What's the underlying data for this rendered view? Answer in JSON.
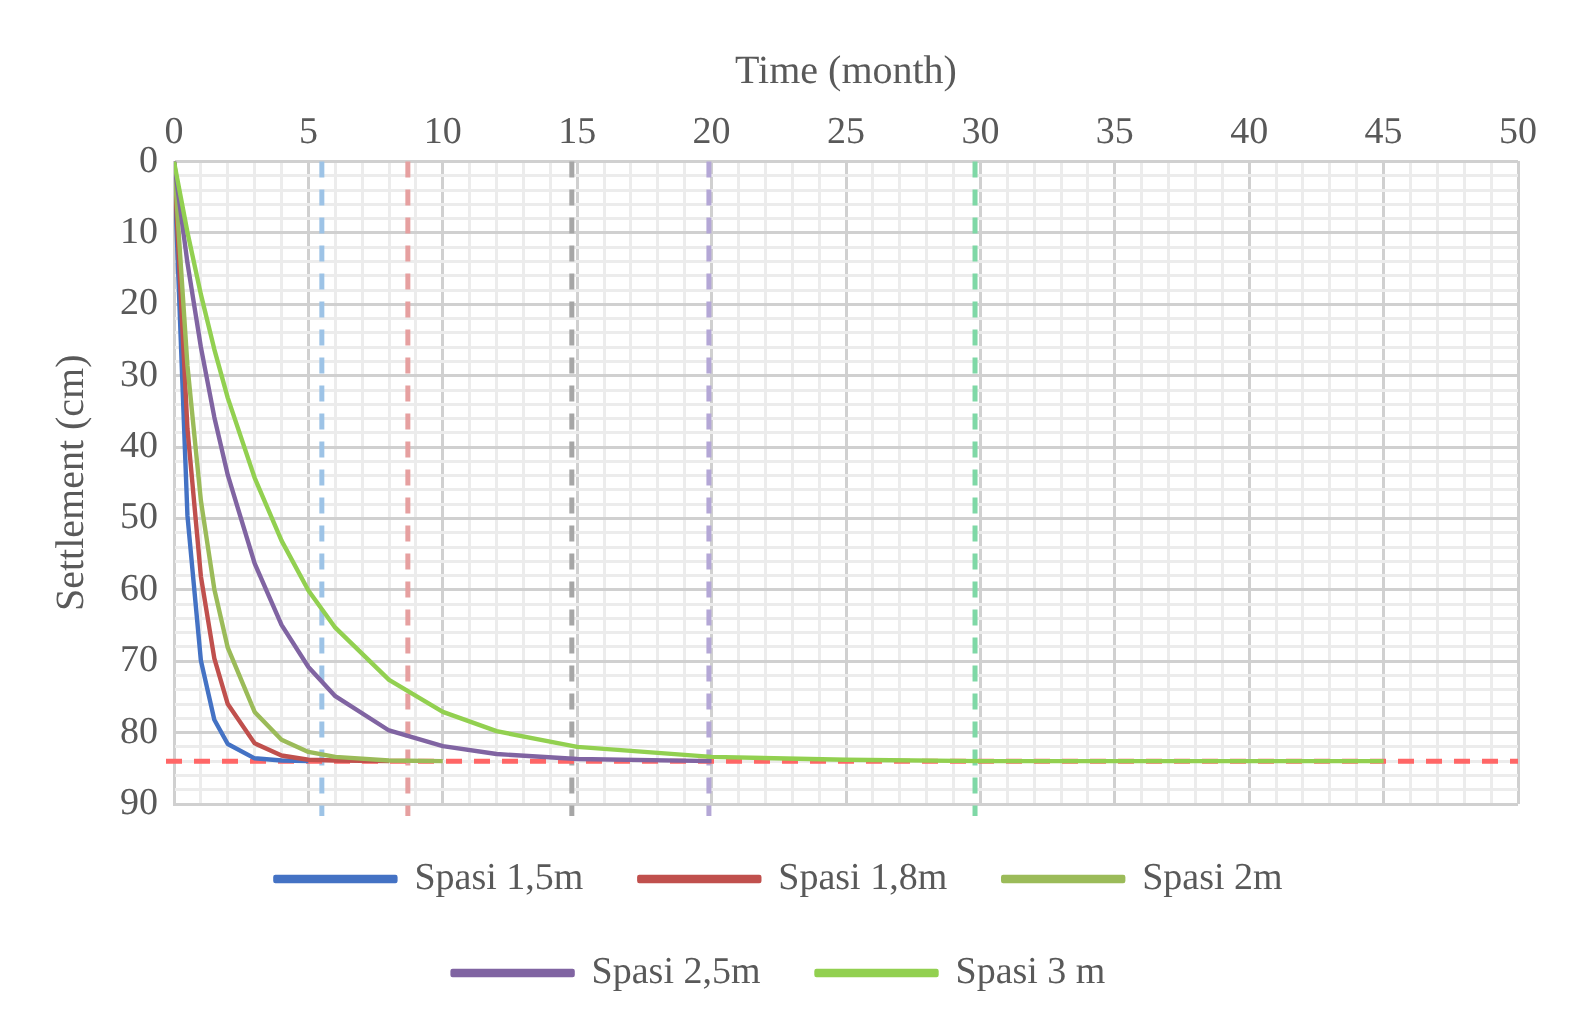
{
  "chart_data": {
    "type": "line",
    "xlabel": "Time (month)",
    "ylabel": "Settlement (cm)",
    "xlim": [
      0,
      50
    ],
    "ylim": [
      90,
      0
    ],
    "xticks": [
      0,
      {
        "value": 1,
        "label": null
      },
      {
        "value": 2,
        "label": null
      },
      {
        "value": 3,
        "label": null
      },
      {
        "value": 4,
        "label": null
      },
      5,
      {
        "value": 6,
        "label": null
      },
      {
        "value": 7,
        "label": null
      },
      {
        "value": 8,
        "label": null
      },
      {
        "value": 9,
        "label": null
      },
      10,
      {
        "value": 11,
        "label": null
      },
      {
        "value": 12,
        "label": null
      },
      {
        "value": 13,
        "label": null
      },
      {
        "value": 14,
        "label": null
      },
      15,
      {
        "value": 16,
        "label": null
      },
      {
        "value": 17,
        "label": null
      },
      {
        "value": 18,
        "label": null
      },
      {
        "value": 19,
        "label": null
      },
      20,
      {
        "value": 21,
        "label": null
      },
      {
        "value": 22,
        "label": null
      },
      {
        "value": 23,
        "label": null
      },
      {
        "value": 24,
        "label": null
      },
      25,
      {
        "value": 26,
        "label": null
      },
      {
        "value": 27,
        "label": null
      },
      {
        "value": 28,
        "label": null
      },
      {
        "value": 29,
        "label": null
      },
      30,
      {
        "value": 31,
        "label": null
      },
      {
        "value": 32,
        "label": null
      },
      {
        "value": 33,
        "label": null
      },
      {
        "value": 34,
        "label": null
      },
      35,
      {
        "value": 36,
        "label": null
      },
      {
        "value": 37,
        "label": null
      },
      {
        "value": 38,
        "label": null
      },
      {
        "value": 39,
        "label": null
      },
      40,
      {
        "value": 41,
        "label": null
      },
      {
        "value": 42,
        "label": null
      },
      {
        "value": 43,
        "label": null
      },
      {
        "value": 44,
        "label": null
      },
      45,
      {
        "value": 46,
        "label": null
      },
      {
        "value": 47,
        "label": null
      },
      {
        "value": 48,
        "label": null
      },
      {
        "value": 49,
        "label": null
      },
      50
    ],
    "yticks": [
      0,
      {
        "value": 2,
        "label": null
      },
      {
        "value": 4,
        "label": null
      },
      {
        "value": 6,
        "label": null
      },
      {
        "value": 8,
        "label": null
      },
      10,
      {
        "value": 12,
        "label": null
      },
      {
        "value": 14,
        "label": null
      },
      {
        "value": 16,
        "label": null
      },
      {
        "value": 18,
        "label": null
      },
      20,
      {
        "value": 22,
        "label": null
      },
      {
        "value": 24,
        "label": null
      },
      {
        "value": 26,
        "label": null
      },
      {
        "value": 28,
        "label": null
      },
      30,
      {
        "value": 32,
        "label": null
      },
      {
        "value": 34,
        "label": null
      },
      {
        "value": 36,
        "label": null
      },
      {
        "value": 38,
        "label": null
      },
      40,
      {
        "value": 42,
        "label": null
      },
      {
        "value": 44,
        "label": null
      },
      {
        "value": 46,
        "label": null
      },
      {
        "value": 48,
        "label": null
      },
      50,
      {
        "value": 52,
        "label": null
      },
      {
        "value": 54,
        "label": null
      },
      {
        "value": 56,
        "label": null
      },
      {
        "value": 58,
        "label": null
      },
      60,
      {
        "value": 62,
        "label": null
      },
      {
        "value": 64,
        "label": null
      },
      {
        "value": 66,
        "label": null
      },
      {
        "value": 68,
        "label": null
      },
      70,
      {
        "value": 72,
        "label": null
      },
      {
        "value": 74,
        "label": null
      },
      {
        "value": 76,
        "label": null
      },
      {
        "value": 78,
        "label": null
      },
      80,
      {
        "value": 82,
        "label": null
      },
      {
        "value": 84,
        "label": null
      },
      {
        "value": 86,
        "label": null
      },
      {
        "value": 88,
        "label": null
      },
      90
    ],
    "grid": true,
    "legend": "bottom",
    "marker": "none",
    "line_style": "solid",
    "x": [
      0,
      0.5,
      1,
      1.5,
      2,
      3,
      4,
      5,
      6,
      8,
      10,
      12,
      15,
      20,
      25,
      30,
      35,
      40,
      45
    ],
    "series": [
      {
        "name": "Spasi 1,5m",
        "color": "#4472c4",
        "values": [
          0,
          49.6,
          69.9,
          78.2,
          81.6,
          83.6,
          83.9,
          84,
          null,
          null,
          null,
          null,
          null,
          null,
          null,
          null,
          null,
          null,
          null
        ]
      },
      {
        "name": "Spasi 1,8m",
        "color": "#c0504d",
        "values": [
          0,
          37.4,
          58.1,
          69.6,
          76.0,
          81.5,
          83.2,
          83.8,
          83.9,
          84,
          null,
          null,
          null,
          null,
          null,
          null,
          null,
          null,
          null
        ]
      },
      {
        "name": "Spasi 2m",
        "color": "#9bbb59",
        "values": [
          0,
          28.6,
          47.5,
          59.9,
          68.1,
          77.1,
          81.0,
          82.7,
          83.4,
          83.9,
          84,
          null,
          null,
          null,
          null,
          null,
          null,
          null,
          null
        ]
      },
      {
        "name": "Spasi 2,5m",
        "color": "#8064a2",
        "values": [
          0,
          14.2,
          26.0,
          35.8,
          43.9,
          56.3,
          64.9,
          70.8,
          74.9,
          79.7,
          81.9,
          83.0,
          83.7,
          84,
          null,
          null,
          null,
          null,
          null
        ]
      },
      {
        "name": "Spasi 3 m",
        "color": "#92d050",
        "values": [
          0,
          9.9,
          18.6,
          26.3,
          33.1,
          44.3,
          53.1,
          60.1,
          65.3,
          72.6,
          77.1,
          79.8,
          82.0,
          83.4,
          83.8,
          84,
          84,
          84,
          84
        ]
      }
    ],
    "ref_lines": [
      {
        "axis": "x",
        "value": 5.5,
        "color": "#9dc3e6",
        "line_style": "dashed"
      },
      {
        "axis": "x",
        "value": 8.7,
        "color": "#e6a0a0",
        "line_style": "dashed"
      },
      {
        "axis": "x",
        "value": 14.8,
        "color": "#a6a6a6",
        "line_style": "dashed"
      },
      {
        "axis": "x",
        "value": 19.9,
        "color": "#b4a7d6",
        "line_style": "dashed"
      },
      {
        "axis": "x",
        "value": 29.8,
        "color": "#7fd8a6",
        "line_style": "dashed"
      },
      {
        "axis": "y",
        "value": 84,
        "color": "#ff6666",
        "line_style": "dashed"
      }
    ]
  }
}
